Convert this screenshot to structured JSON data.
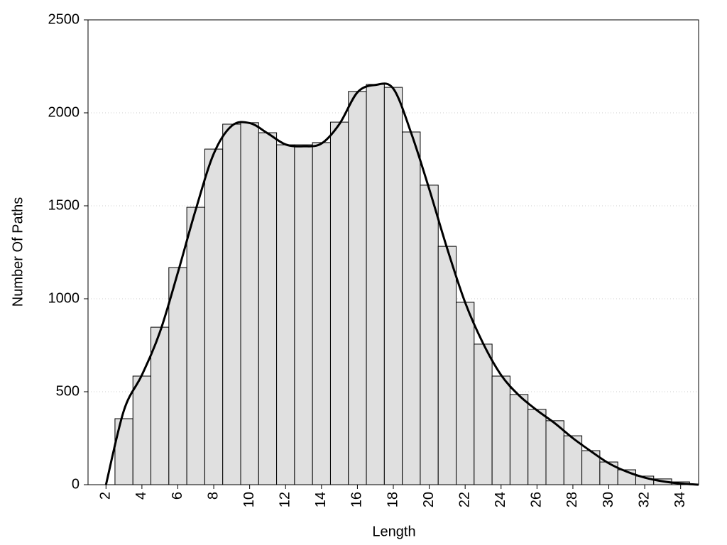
{
  "chart_data": {
    "type": "histogram",
    "xlabel": "Length",
    "ylabel": "Number Of Paths",
    "bins": [
      2.5,
      3.5,
      4.5,
      5.5,
      6.5,
      7.5,
      8.5,
      9.5,
      10.5,
      11.5,
      12.5,
      13.5,
      14.5,
      15.5,
      16.5,
      17.5,
      18.5,
      19.5,
      20.5,
      21.5,
      22.5,
      23.5,
      24.5,
      25.5,
      26.5,
      27.5,
      28.5,
      29.5,
      30.5,
      31.5,
      32.5,
      33.5,
      34.5
    ],
    "values": [
      355,
      584,
      847,
      1168,
      1492,
      1805,
      1939,
      1947,
      1893,
      1828,
      1828,
      1840,
      1950,
      2115,
      2153,
      2137,
      1897,
      1611,
      1282,
      981,
      756,
      584,
      485,
      405,
      344,
      263,
      183,
      122,
      80,
      46,
      31,
      15
    ],
    "color": "#e0e0e0",
    "curve": {
      "color": "#000000",
      "x": [
        2,
        3,
        4,
        5,
        6,
        7,
        8,
        9,
        10,
        11,
        12,
        13,
        14,
        15,
        16,
        17,
        18,
        19,
        20,
        21,
        22,
        23,
        24,
        25,
        26,
        27,
        28,
        29,
        30,
        31,
        32,
        33,
        34,
        35
      ],
      "values": [
        0,
        400,
        590,
        820,
        1140,
        1480,
        1780,
        1930,
        1945,
        1890,
        1830,
        1820,
        1835,
        1940,
        2110,
        2150,
        2130,
        1890,
        1590,
        1270,
        980,
        760,
        590,
        480,
        400,
        330,
        250,
        180,
        115,
        70,
        38,
        18,
        6,
        0
      ]
    },
    "xlim": [
      1,
      35
    ],
    "ylim": [
      0,
      2500
    ],
    "xticks": [
      2,
      4,
      6,
      8,
      10,
      12,
      14,
      16,
      18,
      20,
      22,
      24,
      26,
      28,
      30,
      32,
      34
    ],
    "yticks": [
      0,
      500,
      1000,
      1500,
      2000,
      2500
    ],
    "grid": true
  }
}
